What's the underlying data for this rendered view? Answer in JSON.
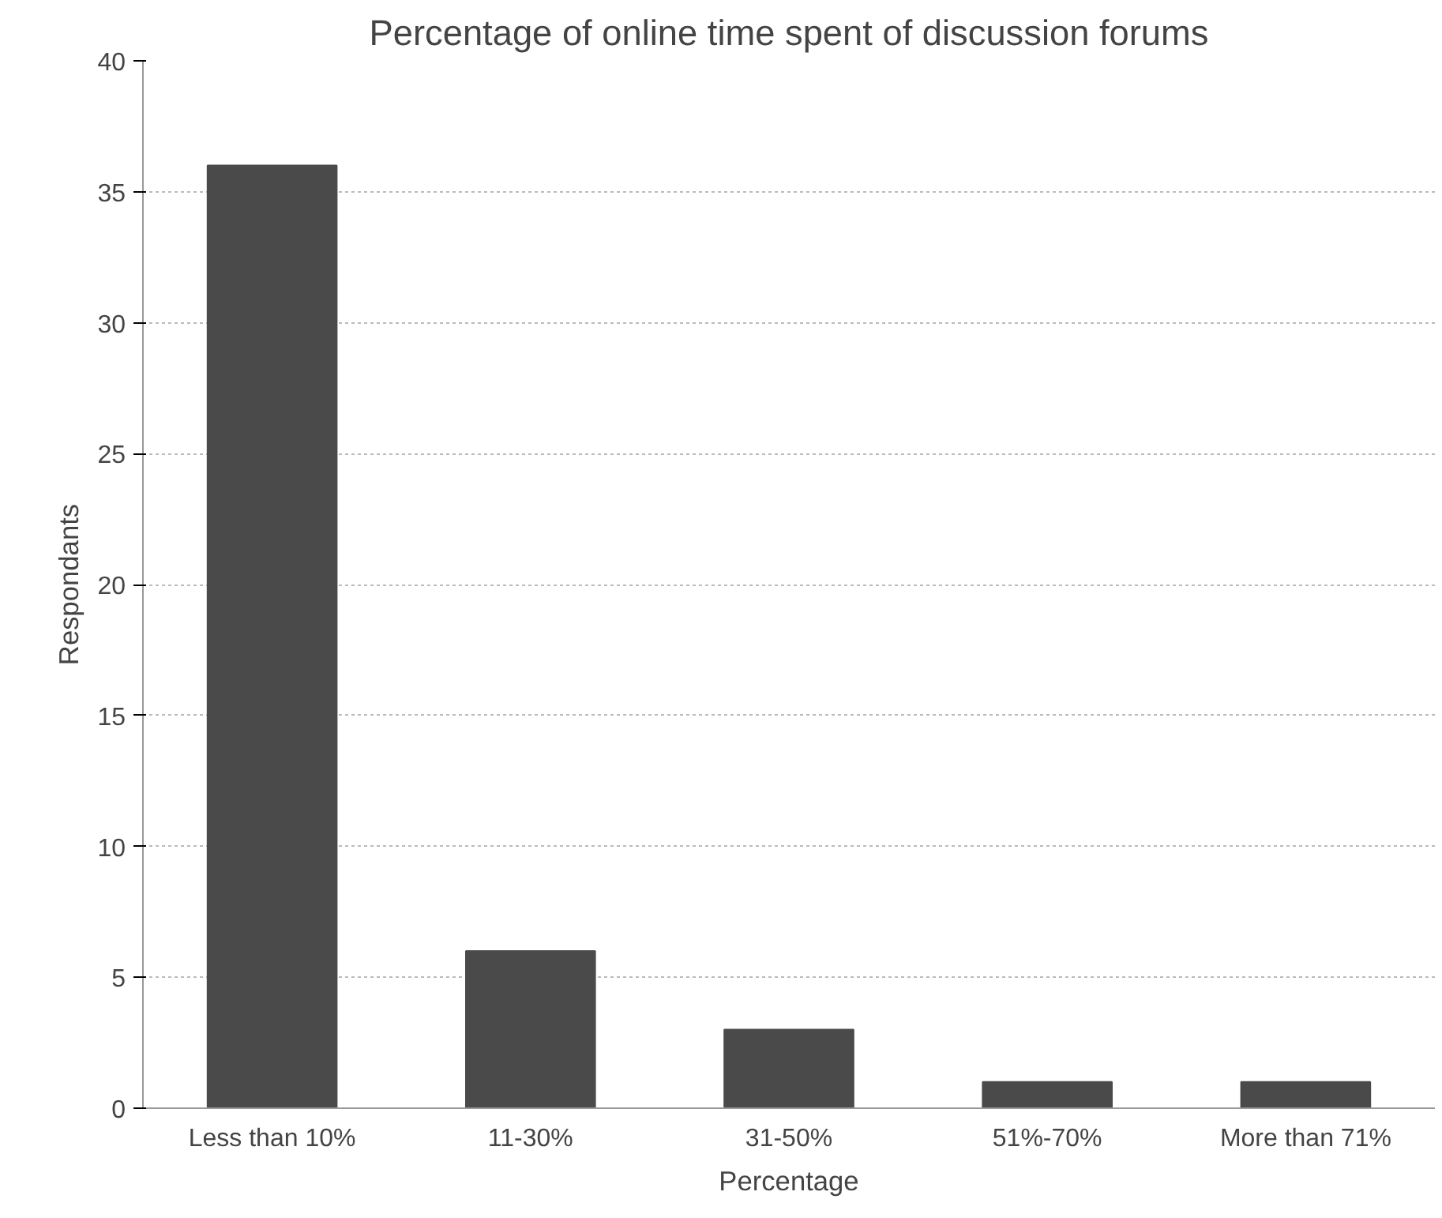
{
  "chart_data": {
    "type": "bar",
    "title": "Percentage of online time spent of discussion forums",
    "xlabel": "Percentage",
    "ylabel": "Respondants",
    "categories": [
      "Less than 10%",
      "11-30%",
      "31-50%",
      "51%-70%",
      "More than 71%"
    ],
    "values": [
      36,
      6,
      3,
      1,
      1
    ],
    "color": "#4a4a4a",
    "ylim": [
      0,
      40
    ],
    "yticks": [
      0,
      5,
      10,
      15,
      20,
      25,
      30,
      35,
      40
    ],
    "grid": "y"
  }
}
